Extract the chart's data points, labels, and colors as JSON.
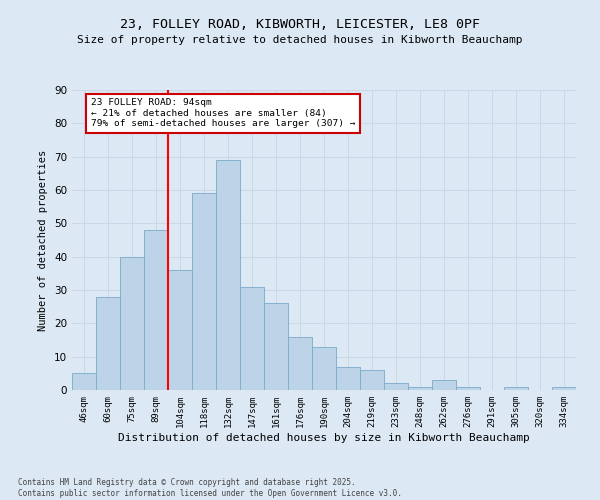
{
  "title1": "23, FOLLEY ROAD, KIBWORTH, LEICESTER, LE8 0PF",
  "title2": "Size of property relative to detached houses in Kibworth Beauchamp",
  "xlabel": "Distribution of detached houses by size in Kibworth Beauchamp",
  "ylabel": "Number of detached properties",
  "categories": [
    "46sqm",
    "60sqm",
    "75sqm",
    "89sqm",
    "104sqm",
    "118sqm",
    "132sqm",
    "147sqm",
    "161sqm",
    "176sqm",
    "190sqm",
    "204sqm",
    "219sqm",
    "233sqm",
    "248sqm",
    "262sqm",
    "276sqm",
    "291sqm",
    "305sqm",
    "320sqm",
    "334sqm"
  ],
  "bar_values": [
    5,
    28,
    40,
    48,
    36,
    59,
    69,
    31,
    26,
    16,
    13,
    7,
    6,
    2,
    1,
    3,
    1,
    0,
    1,
    0,
    1
  ],
  "annotation_text": "23 FOLLEY ROAD: 94sqm\n← 21% of detached houses are smaller (84)\n79% of semi-detached houses are larger (307) →",
  "red_line_x": 3.5,
  "bar_color": "#bdd4e8",
  "bar_edge_color": "#7aaac8",
  "grid_color": "#c8d8e8",
  "background_color": "#dce8f4",
  "annotation_box_color": "#ffffff",
  "annotation_box_edge": "#cc0000",
  "footer1": "Contains HM Land Registry data © Crown copyright and database right 2025.",
  "footer2": "Contains public sector information licensed under the Open Government Licence v3.0.",
  "ylim": [
    0,
    90
  ],
  "yticks": [
    0,
    10,
    20,
    30,
    40,
    50,
    60,
    70,
    80,
    90
  ]
}
